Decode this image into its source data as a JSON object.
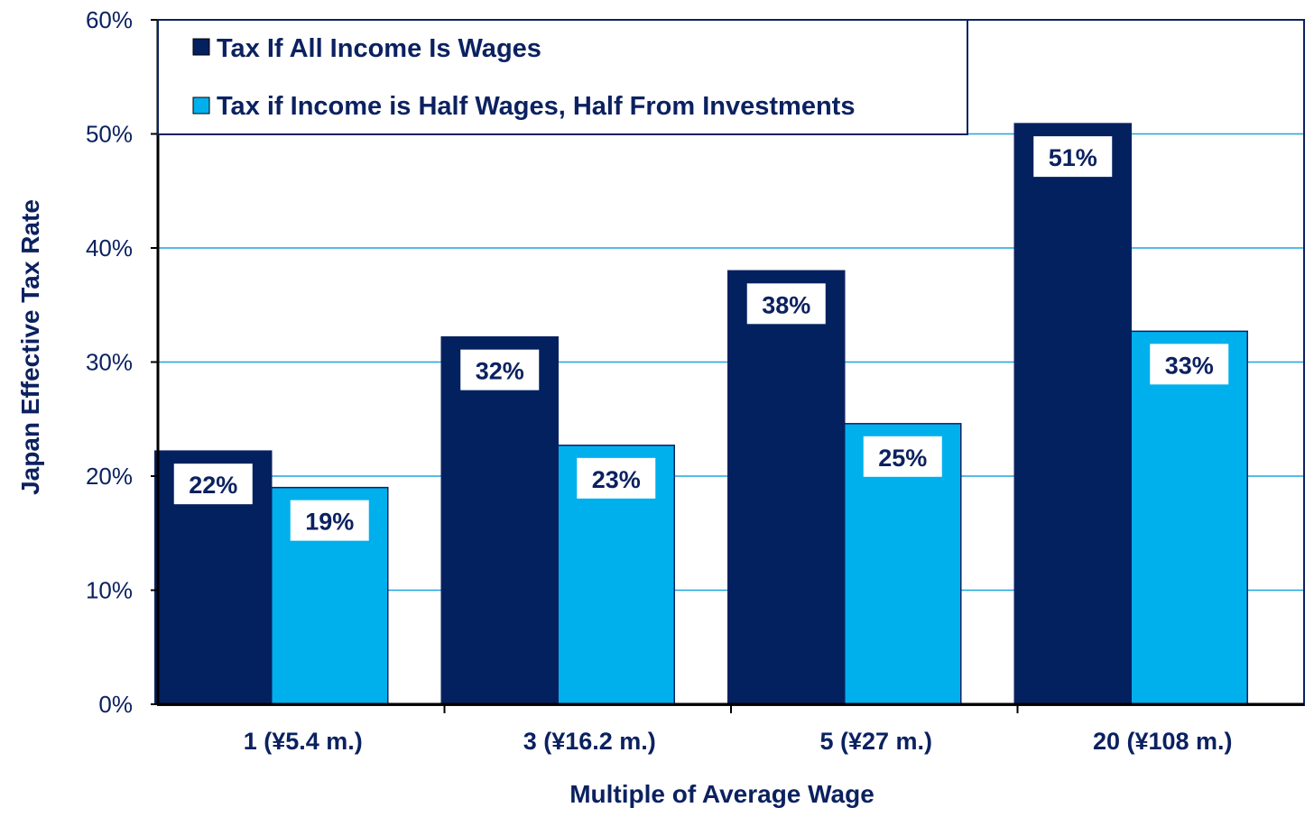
{
  "chart_data": {
    "type": "bar",
    "ylabel": "Japan Effective Tax Rate",
    "xlabel": "Multiple of Average Wage",
    "ylim": [
      0,
      60
    ],
    "yticks": [
      "0%",
      "10%",
      "20%",
      "30%",
      "40%",
      "50%",
      "60%"
    ],
    "grid": true,
    "legend_position": "top-left",
    "categories": [
      "1   (¥5.4 m.)",
      "3   (¥16.2 m.)",
      "5   (¥27 m.)",
      "20   (¥108 m.)"
    ],
    "series": [
      {
        "name": "Tax If All Income Is Wages",
        "color": "#03215f",
        "values": [
          22.2,
          32.2,
          38.0,
          50.9
        ],
        "labels": [
          "22%",
          "32%",
          "38%",
          "51%"
        ]
      },
      {
        "name": "Tax if Income is Half Wages, Half From Investments",
        "color": "#00b0ed",
        "values": [
          19.0,
          22.7,
          24.6,
          32.7
        ],
        "labels": [
          "19%",
          "23%",
          "25%",
          "33%"
        ]
      }
    ],
    "colors": {
      "text": "#0b2160",
      "grid": "#1fa6dd",
      "axis": "#000000"
    }
  }
}
